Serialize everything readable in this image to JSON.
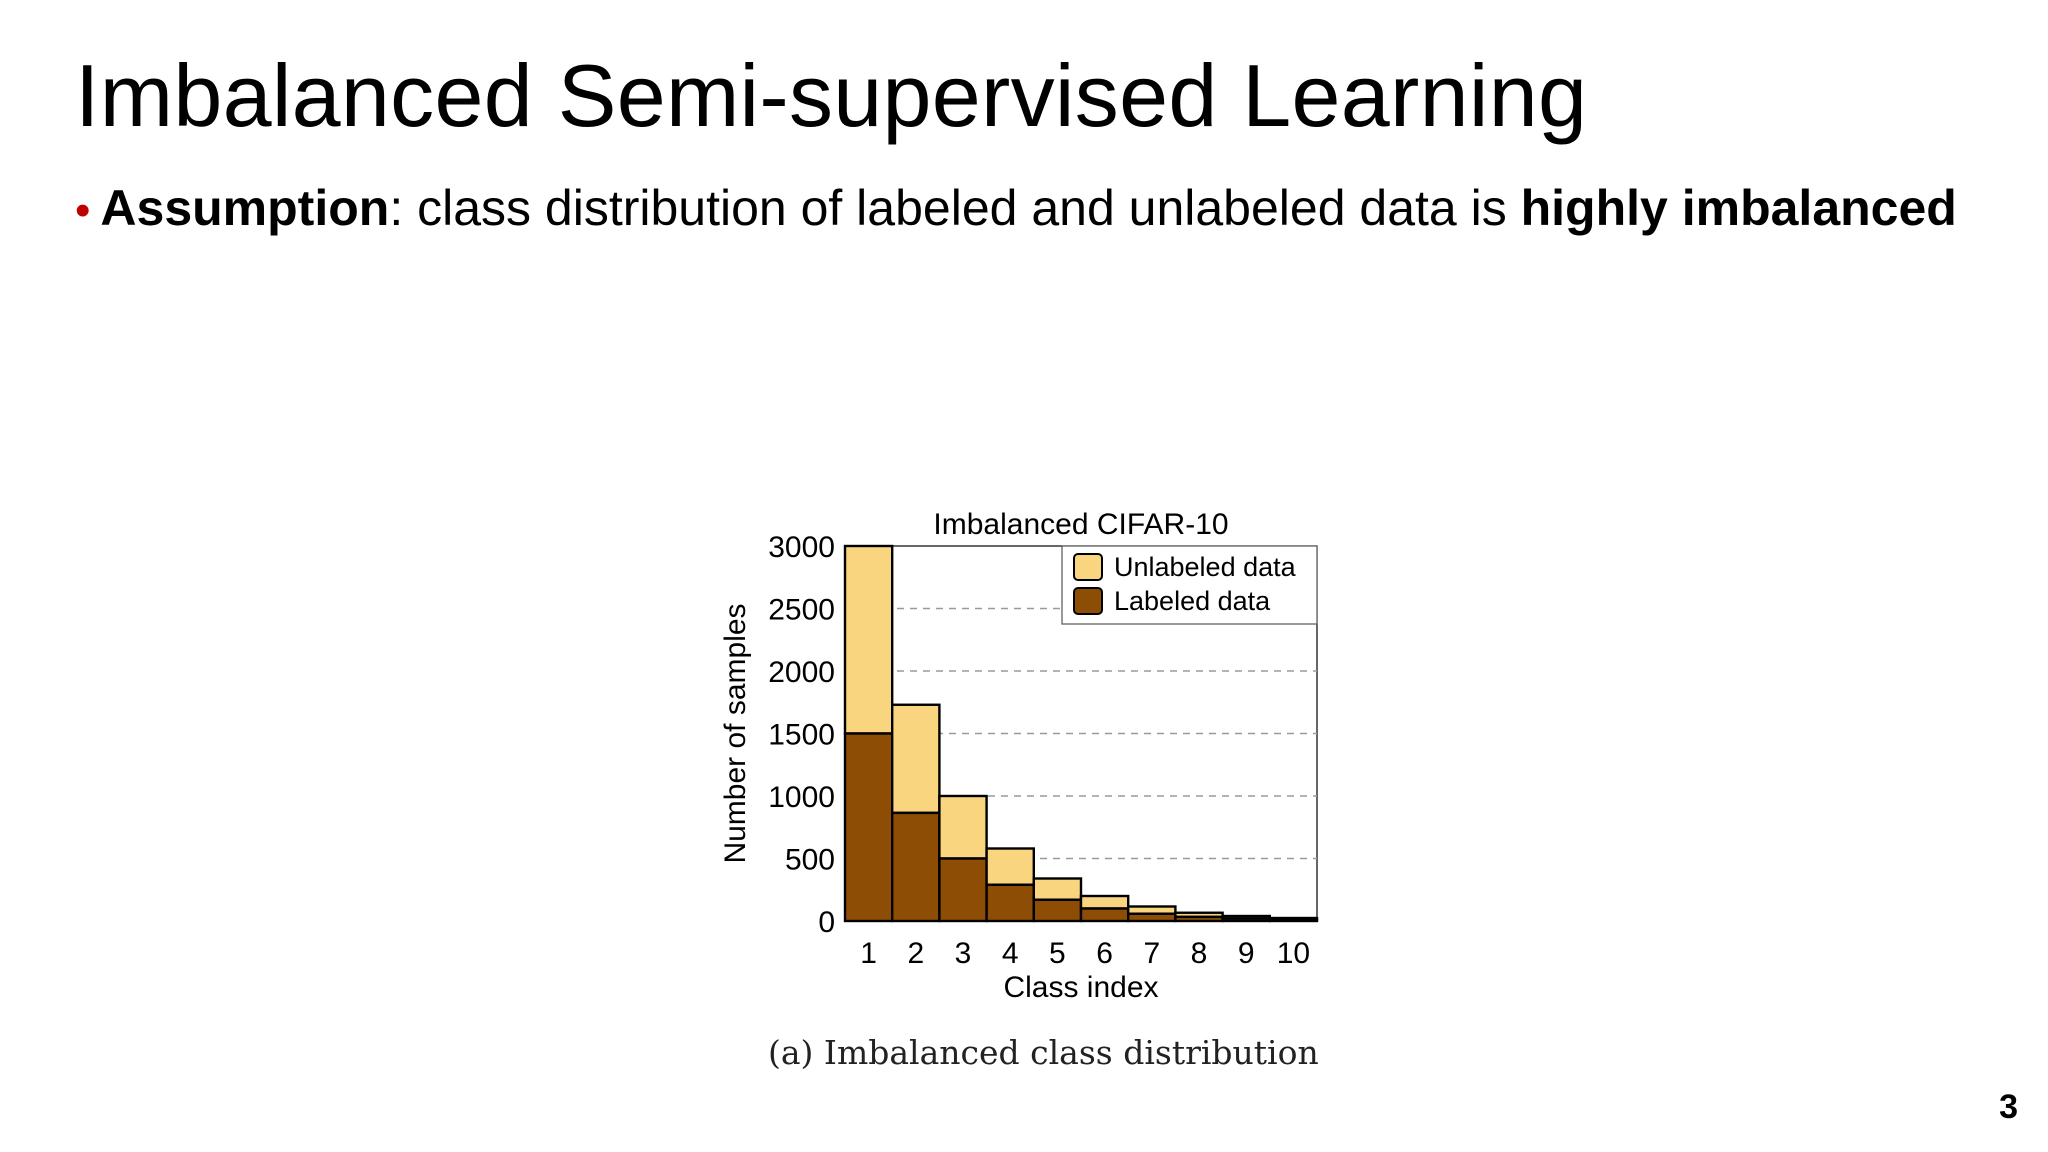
{
  "slide": {
    "title": "Imbalanced Semi-supervised Learning",
    "bullet": {
      "marker": "•",
      "bold_lead": "Assumption",
      "middle": ": class distribution of labeled and unlabeled data is ",
      "bold_tail": "highly imbalanced"
    },
    "caption": "(a)  Imbalanced class distribution",
    "page_number": "3"
  },
  "colors": {
    "bullet": "#c00000",
    "unlabeled": "#fad57f",
    "labeled": "#8e4d05",
    "grid": "#9a9a9a"
  },
  "chart_data": {
    "type": "bar",
    "stacked": true,
    "title": "Imbalanced CIFAR-10",
    "xlabel": "Class index",
    "ylabel": "Number of samples",
    "categories": [
      "1",
      "2",
      "3",
      "4",
      "5",
      "6",
      "7",
      "8",
      "9",
      "10"
    ],
    "series": [
      {
        "name": "Labeled data",
        "color": "#8e4d05",
        "values": [
          1500,
          865,
          500,
          290,
          170,
          100,
          58,
          33,
          20,
          12
        ]
      },
      {
        "name": "Unlabeled data",
        "color": "#fad57f",
        "values": [
          1500,
          865,
          500,
          290,
          170,
          100,
          58,
          33,
          20,
          12
        ]
      }
    ],
    "legend_order": [
      "Unlabeled data",
      "Labeled data"
    ],
    "ylim": [
      0,
      3000
    ],
    "yticks": [
      0,
      500,
      1000,
      1500,
      2000,
      2500,
      3000
    ],
    "grid": "horizontal dashed",
    "legend_position": "top-right"
  }
}
